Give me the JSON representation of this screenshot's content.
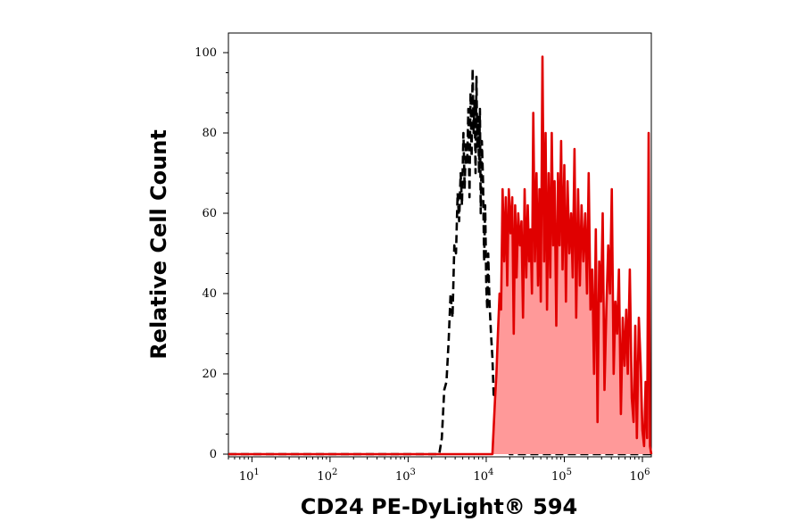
{
  "chart_data": {
    "type": "area",
    "title": "",
    "xlabel": "CD24 PE-DyLight® 594",
    "ylabel": "Relative Cell Count",
    "x_scale": "log",
    "xlim": [
      5,
      1300000
    ],
    "ylim": [
      0,
      105
    ],
    "grid": false,
    "x_ticks": [
      {
        "value": 10,
        "base": "10",
        "exp": "1"
      },
      {
        "value": 100,
        "base": "10",
        "exp": "2"
      },
      {
        "value": 1000,
        "base": "10",
        "exp": "3"
      },
      {
        "value": 10000,
        "base": "10",
        "exp": "4"
      },
      {
        "value": 100000,
        "base": "10",
        "exp": "5"
      },
      {
        "value": 1000000,
        "base": "10",
        "exp": "6"
      }
    ],
    "y_ticks": [
      0,
      20,
      40,
      60,
      80,
      100
    ],
    "series": [
      {
        "color": "#000000",
        "style": "dashed",
        "fill": null,
        "x": [
          5,
          2500,
          2700,
          2900,
          3100,
          3300,
          3500,
          3700,
          3900,
          4100,
          4300,
          4500,
          4700,
          4900,
          5100,
          5300,
          5500,
          5700,
          5900,
          6100,
          6300,
          6500,
          6700,
          6900,
          7100,
          7300,
          7500,
          7700,
          7900,
          8100,
          8300,
          8500,
          8800,
          9100,
          9400,
          9700,
          10000,
          10300,
          10600,
          11000,
          11500,
          12000,
          12500,
          13000,
          13500,
          14000,
          15000,
          16000,
          17000,
          18000,
          19000,
          20000,
          1300000
        ],
        "y": [
          0,
          0,
          4,
          16,
          18,
          28,
          40,
          34,
          52,
          50,
          65,
          58,
          70,
          62,
          80,
          66,
          78,
          72,
          86,
          64,
          90,
          74,
          96,
          80,
          88,
          70,
          94,
          76,
          84,
          70,
          86,
          60,
          78,
          68,
          48,
          62,
          42,
          36,
          50,
          38,
          30,
          24,
          14,
          16,
          10,
          12,
          6,
          8,
          4,
          2,
          1,
          0,
          0
        ]
      },
      {
        "color": "#e00000",
        "style": "solid",
        "fill": "#ff9999",
        "x": [
          5,
          12000,
          13000,
          13500,
          14000,
          14800,
          15500,
          16200,
          17000,
          17800,
          18600,
          19500,
          20500,
          21500,
          22500,
          23500,
          24500,
          25700,
          27000,
          28300,
          29600,
          31000,
          32500,
          34000,
          35500,
          37000,
          38500,
          40000,
          42000,
          44000,
          46000,
          48000,
          50000,
          52500,
          55000,
          57500,
          60000,
          63000,
          66000,
          69000,
          72000,
          75000,
          79000,
          83000,
          87000,
          91000,
          95000,
          100000,
          105000,
          110000,
          116000,
          122000,
          128000,
          135000,
          142000,
          150000,
          158000,
          166000,
          175000,
          185000,
          195000,
          205000,
          216000,
          228000,
          240000,
          253000,
          266000,
          280000,
          295000,
          310000,
          327000,
          345000,
          365000,
          385000,
          405000,
          428000,
          450000,
          475000,
          500000,
          530000,
          560000,
          590000,
          620000,
          650000,
          690000,
          730000,
          770000,
          810000,
          850000,
          900000,
          950000,
          1000000,
          1050000,
          1100000,
          1150000,
          1200000,
          1250000,
          1300000
        ],
        "y": [
          0,
          0,
          14,
          20,
          28,
          40,
          36,
          66,
          48,
          64,
          42,
          66,
          55,
          64,
          30,
          62,
          44,
          60,
          52,
          58,
          34,
          66,
          44,
          62,
          48,
          56,
          40,
          85,
          48,
          70,
          42,
          66,
          38,
          99,
          48,
          80,
          36,
          70,
          44,
          80,
          52,
          68,
          32,
          70,
          52,
          78,
          46,
          72,
          38,
          68,
          50,
          60,
          44,
          76,
          34,
          66,
          42,
          62,
          48,
          60,
          40,
          70,
          36,
          46,
          20,
          56,
          8,
          48,
          38,
          60,
          16,
          36,
          52,
          40,
          66,
          20,
          38,
          30,
          46,
          10,
          34,
          22,
          36,
          20,
          46,
          14,
          8,
          32,
          4,
          34,
          22,
          6,
          2,
          18,
          4,
          80,
          2,
          0
        ]
      }
    ]
  }
}
